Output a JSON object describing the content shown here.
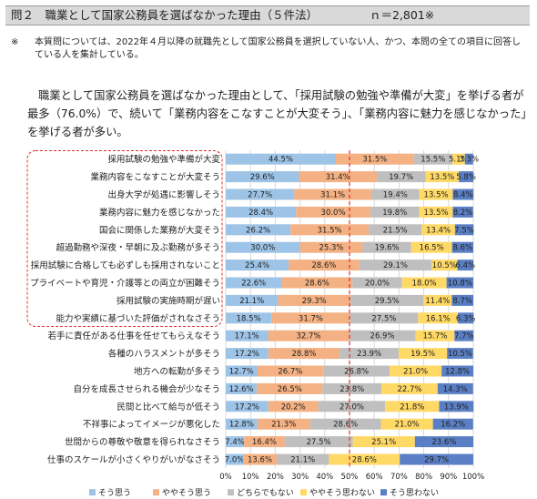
{
  "header": {
    "title": "問２　職業として国家公務員を選ばなかった理由（５件法）",
    "n": "ｎ＝2,801※"
  },
  "note": {
    "mark": "※",
    "text": "本質問については、2022年４月以降の就職先として国家公務員を選択していない人、かつ、本問の全ての項目に回答している人を集計している。"
  },
  "summary": "職業として国家公務員を選ばなかった理由として、「採用試験の勉強や準備が大変」を挙げる者が最多（76.0%）で、続いて「業務内容をこなすことが大変そう」、「業務内容に魅力を感じなかった」を挙げる者が多い。",
  "colors": {
    "series": [
      "#9dc3e6",
      "#f4b183",
      "#bfbfbf",
      "#ffd966",
      "#5b7fc4"
    ],
    "highlight_box": "#e03030",
    "reference_line": "#e03030",
    "grid": "#d9d9d9"
  },
  "chart_data": {
    "type": "bar",
    "orientation": "horizontal",
    "stacked": true,
    "percent": true,
    "xlim": [
      0,
      100
    ],
    "xticks": [
      "0%",
      "10%",
      "20%",
      "30%",
      "40%",
      "50%",
      "60%",
      "70%",
      "80%",
      "90%",
      "100%"
    ],
    "reference_line_x": 50,
    "highlighted_categories_count": 10,
    "legend_position": "bottom",
    "categories": [
      "採用試験の勉強や準備が大変",
      "業務内容をこなすことが大変そう",
      "出身大学が処遇に影響しそう",
      "業務内容に魅力を感じなかった",
      "国会に関係した業務が大変そう",
      "超過勤務や深夜・早朝に及ぶ勤務が多そう",
      "採用試験に合格しても必ずしも採用されないこと",
      "プライベートや育児・介護等との両立が困難そう",
      "採用試験の実施時期が遅い",
      "能力や実績に基づいた評価がされなさそう",
      "若手に責任がある仕事を任せてもらえなそう",
      "各種のハラスメントが多そう",
      "地方への転勤が多そう",
      "自分を成長させられる機会が少なそう",
      "民間と比べて給与が低そう",
      "不祥事によってイメージが悪化した",
      "世間からの尊敬や敬意を得られなさそう",
      "仕事のスケールが小さくやりがいがなさそう"
    ],
    "series": [
      {
        "name": "そう思う",
        "values": [
          44.5,
          29.6,
          27.7,
          28.4,
          26.2,
          30.0,
          25.4,
          22.6,
          21.1,
          18.5,
          17.1,
          17.2,
          12.7,
          12.6,
          17.2,
          12.8,
          7.4,
          7.0
        ]
      },
      {
        "name": "ややそう思う",
        "values": [
          31.5,
          31.4,
          31.1,
          30.0,
          31.5,
          25.3,
          28.6,
          28.6,
          29.3,
          31.7,
          32.7,
          28.8,
          26.7,
          26.5,
          20.2,
          21.3,
          16.4,
          13.6
        ]
      },
      {
        "name": "どちらでもない",
        "values": [
          15.5,
          19.7,
          19.4,
          19.8,
          21.5,
          19.6,
          29.1,
          20.0,
          29.5,
          27.5,
          26.9,
          23.9,
          26.8,
          23.8,
          27.0,
          28.6,
          27.5,
          21.1
        ]
      },
      {
        "name": "ややそう思わない",
        "values": [
          5.1,
          13.5,
          13.5,
          13.5,
          13.4,
          16.5,
          10.5,
          18.0,
          11.4,
          16.1,
          15.7,
          19.5,
          21.0,
          22.7,
          21.8,
          21.0,
          25.1,
          28.6
        ]
      },
      {
        "name": "そう思わない",
        "values": [
          3.3,
          5.8,
          8.4,
          8.2,
          7.5,
          8.6,
          6.4,
          10.8,
          8.7,
          6.3,
          7.7,
          10.5,
          12.8,
          14.3,
          13.9,
          16.2,
          23.6,
          29.7
        ]
      }
    ]
  }
}
